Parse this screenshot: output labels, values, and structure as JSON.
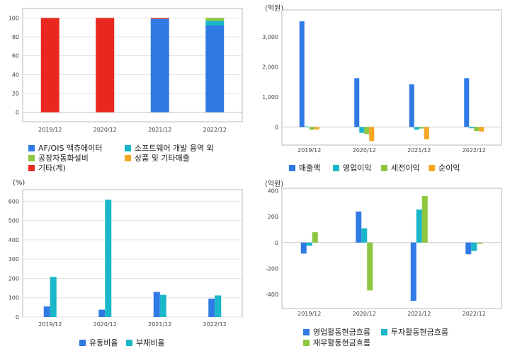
{
  "chart_data": [
    {
      "type": "bar",
      "stacked": true,
      "categories": [
        "2019/12",
        "2020/12",
        "2021/12",
        "2022/12"
      ],
      "ylim": [
        -10,
        110
      ],
      "yticks": [
        0,
        20,
        40,
        60,
        80,
        100
      ],
      "grid": true,
      "legend_position": "bottom",
      "series": [
        {
          "name": "AF/OIS 액츄에이터",
          "color": "#2f7ae5",
          "values": [
            0,
            0,
            99,
            92
          ]
        },
        {
          "name": "소프트웨어 개발 용역 외",
          "color": "#19b7c9",
          "values": [
            0,
            0,
            0,
            5
          ]
        },
        {
          "name": "공장자동화설비",
          "color": "#8dc63f",
          "values": [
            0,
            0,
            0,
            3
          ]
        },
        {
          "name": "상품 및 기타매출",
          "color": "#f5a623",
          "values": [
            0,
            0,
            0,
            0
          ]
        },
        {
          "name": "기타(계)",
          "color": "#e8281e",
          "values": [
            100,
            100,
            1,
            0
          ]
        }
      ]
    },
    {
      "type": "bar",
      "unit": "(억원)",
      "categories": [
        "2019/12",
        "2020/12",
        "2021/12",
        "2022/12"
      ],
      "ylim": [
        -600,
        3900
      ],
      "yticks": [
        0,
        1000,
        2000,
        3000
      ],
      "ytick_labels": [
        "0",
        "1,000",
        "2,000",
        "3,000"
      ],
      "legend_position": "bottom",
      "series": [
        {
          "name": "매출액",
          "color": "#2f7ae5",
          "values": [
            3520,
            1630,
            1420,
            1630
          ]
        },
        {
          "name": "영업이익",
          "color": "#19b7c9",
          "values": [
            20,
            -190,
            -90,
            -40
          ]
        },
        {
          "name": "세전이익",
          "color": "#8dc63f",
          "values": [
            -90,
            -230,
            -50,
            -130
          ]
        },
        {
          "name": "순이익",
          "color": "#f5a623",
          "values": [
            -80,
            -470,
            -410,
            -150
          ]
        }
      ]
    },
    {
      "type": "bar",
      "unit": "(%)",
      "categories": [
        "2019/12",
        "2020/12",
        "2021/12",
        "2022/12"
      ],
      "ylim": [
        0,
        660
      ],
      "yticks": [
        0,
        100,
        200,
        300,
        400,
        500,
        600
      ],
      "grid": true,
      "legend_position": "bottom",
      "series": [
        {
          "name": "유동비율",
          "color": "#2f7ae5",
          "values": [
            55,
            38,
            130,
            95
          ]
        },
        {
          "name": "부채비율",
          "color": "#19b7c9",
          "values": [
            208,
            608,
            115,
            112
          ]
        }
      ]
    },
    {
      "type": "bar",
      "unit": "(억원)",
      "categories": [
        "2019/12",
        "2020/12",
        "2021/12",
        "2022/12"
      ],
      "ylim": [
        -510,
        420
      ],
      "yticks": [
        -400,
        -200,
        0,
        200,
        400
      ],
      "legend_position": "bottom",
      "series": [
        {
          "name": "영업활동현금흐름",
          "color": "#2f7ae5",
          "values": [
            -85,
            240,
            -450,
            -90
          ]
        },
        {
          "name": "투자활동현금흐름",
          "color": "#19b7c9",
          "values": [
            -25,
            110,
            255,
            -65
          ]
        },
        {
          "name": "재무활동현금흐름",
          "color": "#8dc63f",
          "values": [
            80,
            -370,
            360,
            -10
          ]
        }
      ]
    }
  ]
}
